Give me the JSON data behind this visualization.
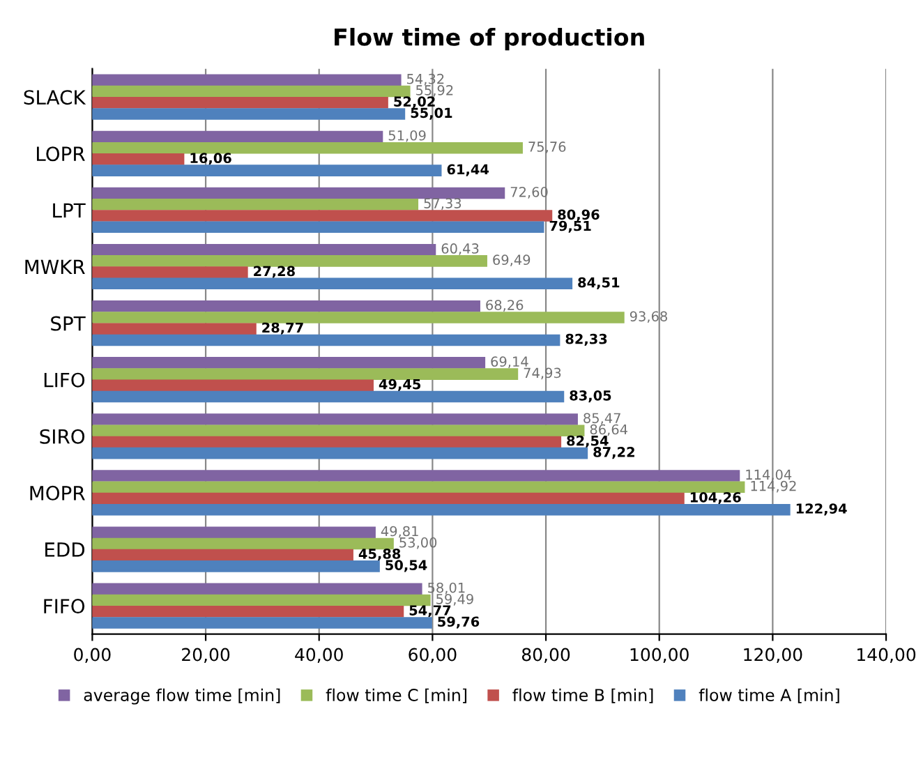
{
  "chart_data": {
    "type": "bar",
    "orientation": "horizontal",
    "title": "Flow time of production",
    "categories": [
      "SLACK",
      "LOPR",
      "LPT",
      "MWKR",
      "SPT",
      "LIFO",
      "SIRO",
      "MOPR",
      "EDD",
      "FIFO"
    ],
    "series": [
      {
        "name": "average flow time [min]",
        "color": "#8064a2",
        "values": [
          54.32,
          51.09,
          72.6,
          60.43,
          68.26,
          69.14,
          85.47,
          114.04,
          49.81,
          58.01
        ],
        "value_labels": [
          "54,32",
          "51,09",
          "72,60",
          "60,43",
          "68,26",
          "69,14",
          "85,47",
          "114,04",
          "49,81",
          "58,01"
        ]
      },
      {
        "name": "flow time C [min]",
        "color": "#9bbb59",
        "values": [
          55.92,
          75.76,
          57.33,
          69.49,
          93.68,
          74.93,
          86.64,
          114.92,
          53.0,
          59.49
        ],
        "value_labels": [
          "55,92",
          "75,76",
          "57,33",
          "69,49",
          "93,68",
          "74,93",
          "86,64",
          "114,92",
          "53,00",
          "59,49"
        ]
      },
      {
        "name": "flow time B [min]",
        "color": "#c0504d",
        "values": [
          52.02,
          16.06,
          80.96,
          27.28,
          28.77,
          49.45,
          82.54,
          104.26,
          45.88,
          54.77
        ],
        "value_labels": [
          "52,02",
          "16,06",
          "80,96",
          "27,28",
          "28,77",
          "49,45",
          "82,54",
          "104,26",
          "45,88",
          "54,77"
        ]
      },
      {
        "name": "flow time A [min]",
        "color": "#4f81bd",
        "values": [
          55.01,
          61.44,
          79.51,
          84.51,
          82.33,
          83.05,
          87.22,
          122.94,
          50.54,
          59.76
        ],
        "value_labels": [
          "55,01",
          "61,44",
          "79,51",
          "84,51",
          "82,33",
          "83,05",
          "87,22",
          "122,94",
          "50,54",
          "59,76"
        ]
      }
    ],
    "xlim": [
      0,
      140
    ],
    "xticks": [
      {
        "value": 0,
        "label": "0,00"
      },
      {
        "value": 20,
        "label": "20,00"
      },
      {
        "value": 40,
        "label": "40,00"
      },
      {
        "value": 60,
        "label": "60,00"
      },
      {
        "value": 80,
        "label": "80,00"
      },
      {
        "value": 100,
        "label": "100,00"
      },
      {
        "value": 120,
        "label": "120,00"
      },
      {
        "value": 140,
        "label": "140,00"
      }
    ],
    "grid": "x",
    "legend": "bottom"
  }
}
